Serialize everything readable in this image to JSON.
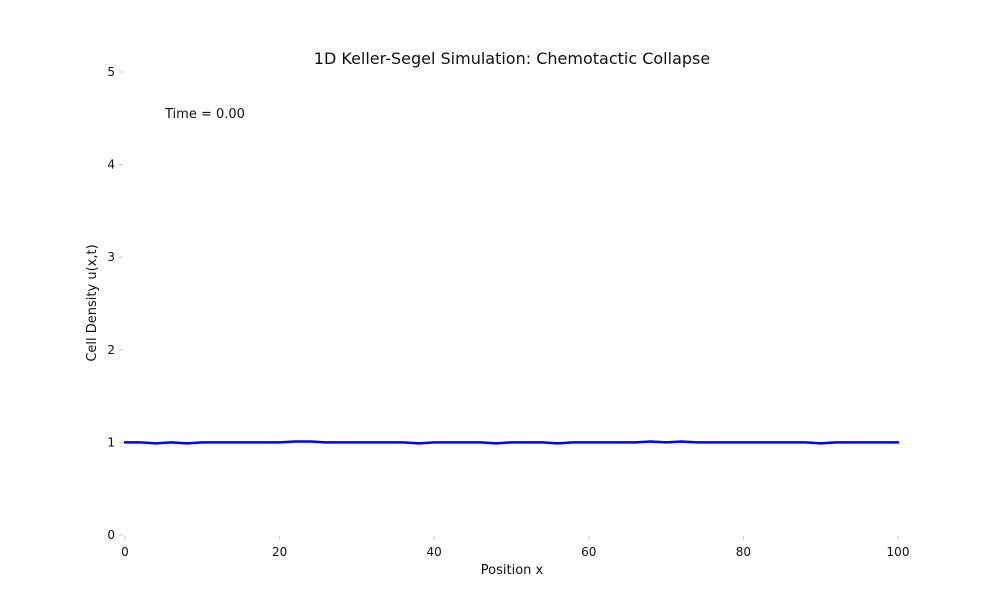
{
  "chart_data": {
    "type": "line",
    "title": "1D Keller-Segel Simulation: Chemotactic Collapse",
    "xlabel": "Position x",
    "ylabel": "Cell Density u(x,t)",
    "xlim": [
      0,
      100
    ],
    "ylim": [
      0,
      5
    ],
    "xticks": [
      0,
      20,
      40,
      60,
      80,
      100
    ],
    "yticks": [
      0,
      1,
      2,
      3,
      4,
      5
    ],
    "grid": false,
    "legend": "none",
    "annotation": "Time = 0.00",
    "series": [
      {
        "color": "#0000ff",
        "x": [
          0,
          2,
          4,
          6,
          8,
          10,
          12,
          14,
          16,
          18,
          20,
          22,
          24,
          26,
          28,
          30,
          32,
          34,
          36,
          38,
          40,
          42,
          44,
          46,
          48,
          50,
          52,
          54,
          56,
          58,
          60,
          62,
          64,
          66,
          68,
          70,
          72,
          74,
          76,
          78,
          80,
          82,
          84,
          86,
          88,
          90,
          92,
          94,
          96,
          98,
          100
        ],
        "y": [
          1.0,
          1.0,
          0.99,
          1.0,
          0.99,
          1.0,
          1.0,
          1.0,
          1.0,
          1.0,
          1.0,
          1.01,
          1.01,
          1.0,
          1.0,
          1.0,
          1.0,
          1.0,
          1.0,
          0.99,
          1.0,
          1.0,
          1.0,
          1.0,
          0.99,
          1.0,
          1.0,
          1.0,
          0.99,
          1.0,
          1.0,
          1.0,
          1.0,
          1.0,
          1.01,
          1.0,
          1.01,
          1.0,
          1.0,
          1.0,
          1.0,
          1.0,
          1.0,
          1.0,
          1.0,
          0.99,
          1.0,
          1.0,
          1.0,
          1.0,
          1.0
        ]
      }
    ]
  }
}
